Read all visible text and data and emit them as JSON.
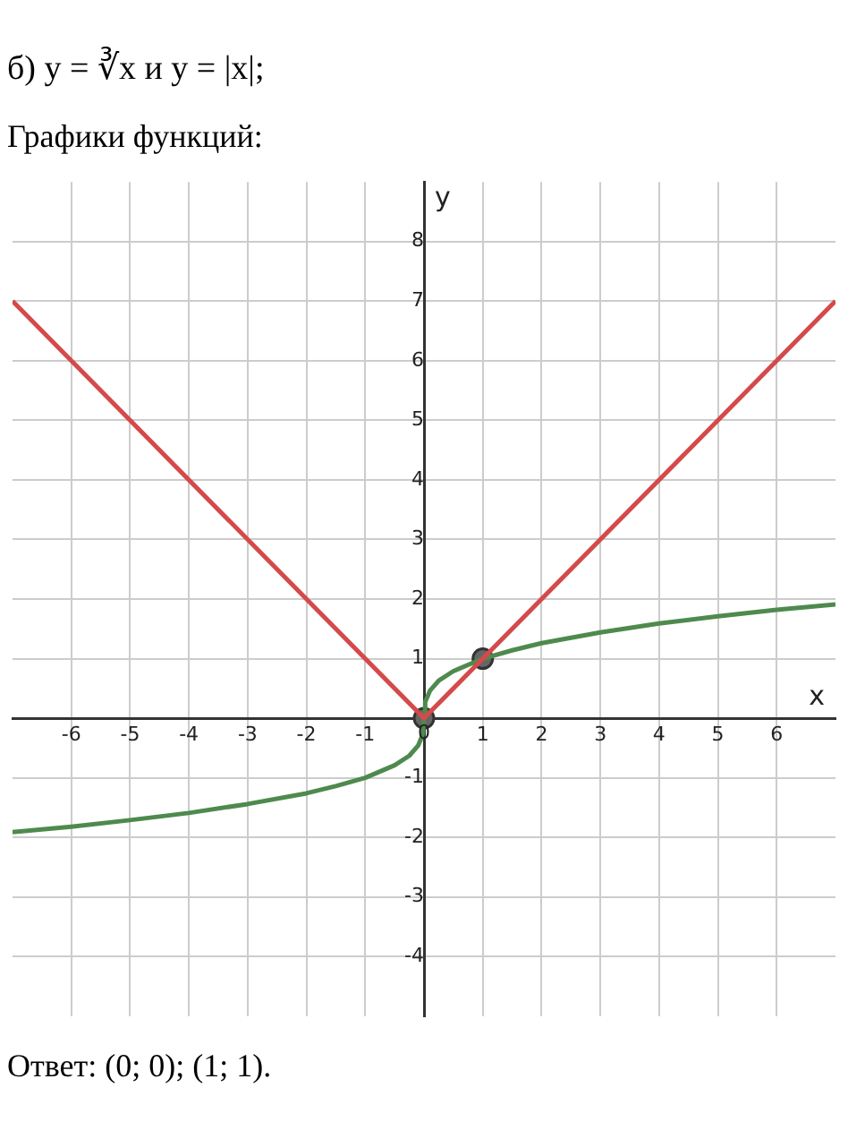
{
  "chart_data": {
    "type": "line",
    "title": "б) y = ∛x  и  y = |x|;",
    "subtitle": "Графики функций:",
    "xlabel": "x",
    "ylabel": "y",
    "annotations": [
      "Ответ:  (0; 0);  (1; 1)."
    ],
    "xlim": [
      -7,
      7
    ],
    "ylim": [
      -5,
      9
    ],
    "xticks": [
      -6,
      -5,
      -4,
      -3,
      -2,
      -1,
      0,
      1,
      2,
      3,
      4,
      5,
      6
    ],
    "yticks": [
      -4,
      -3,
      -2,
      -1,
      {
        "value": 0,
        "label": null
      },
      1,
      2,
      3,
      4,
      5,
      6,
      7,
      8
    ],
    "grid": true,
    "legend": false,
    "marker": "none",
    "line_style": "solid",
    "series": [
      {
        "type": "line",
        "color": "#d44a4a",
        "x": [
          -7,
          0,
          7
        ],
        "values": [
          7,
          0,
          7
        ]
      },
      {
        "type": "line",
        "color": "#4e8a4e",
        "x": [
          -7,
          -6,
          -5,
          -4,
          -3,
          -2,
          -1.5,
          -1,
          -0.5,
          -0.25,
          -0.1,
          -0.02,
          0,
          0.02,
          0.1,
          0.25,
          0.5,
          1,
          1.5,
          2,
          3,
          4,
          5,
          6,
          7
        ],
        "values": [
          -1.91,
          -1.82,
          -1.71,
          -1.59,
          -1.44,
          -1.26,
          -1.14,
          -1,
          -0.79,
          -0.63,
          -0.46,
          -0.27,
          0,
          0.27,
          0.46,
          0.63,
          0.79,
          1,
          1.14,
          1.26,
          1.44,
          1.59,
          1.71,
          1.82,
          1.91
        ]
      },
      {
        "type": "scatter",
        "color": "#666666",
        "marker": "circle",
        "x": [
          0,
          1
        ],
        "values": [
          0,
          1
        ]
      }
    ]
  }
}
